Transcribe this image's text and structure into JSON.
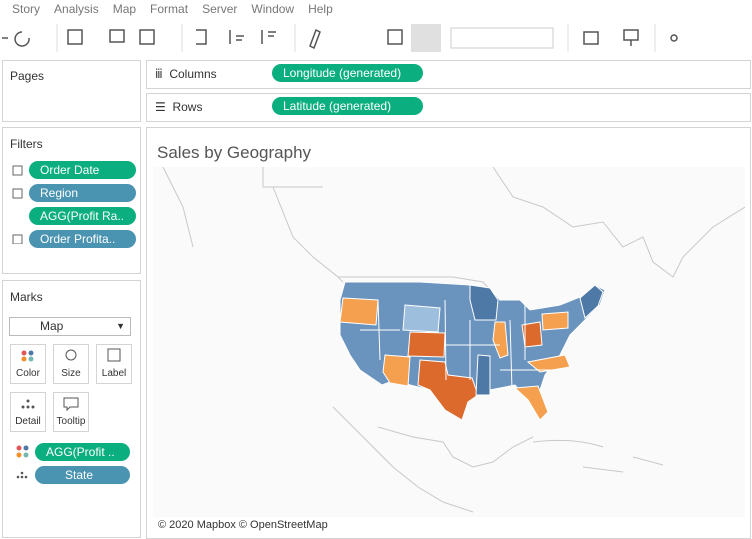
{
  "menu": [
    "Story",
    "Analysis",
    "Map",
    "Format",
    "Server",
    "Window",
    "Help"
  ],
  "pages": {
    "title": "Pages"
  },
  "shelves": {
    "columns": {
      "label": "Columns",
      "pill": "Longitude (generated)"
    },
    "rows": {
      "label": "Rows",
      "pill": "Latitude (generated)"
    }
  },
  "filters": {
    "title": "Filters",
    "items": [
      "Order Date",
      "Region",
      "AGG(Profit Ra..",
      "Order Profita.."
    ]
  },
  "marks": {
    "title": "Marks",
    "mark_type": "Map",
    "buttons": [
      "Color",
      "Size",
      "Label",
      "Detail",
      "Tooltip"
    ],
    "fields": [
      "AGG(Profit ..",
      "State"
    ]
  },
  "view": {
    "title": "Sales by Geography",
    "attribution": "© 2020 Mapbox © OpenStreetMap"
  }
}
